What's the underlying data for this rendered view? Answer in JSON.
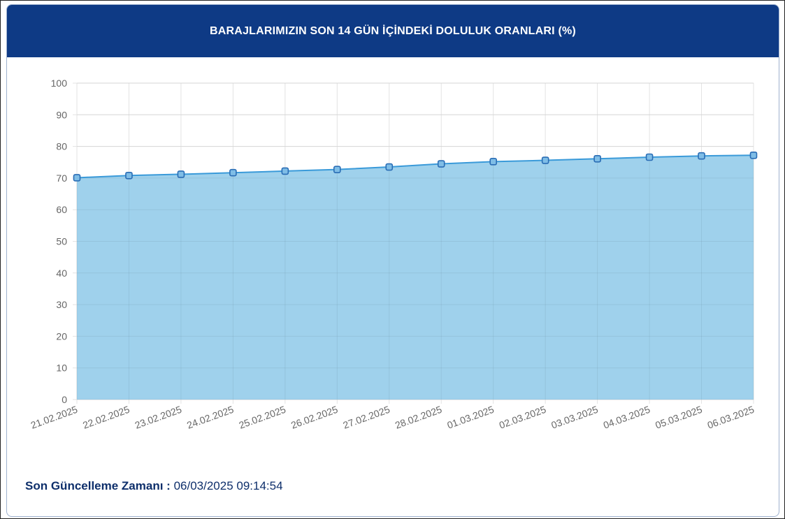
{
  "header": {
    "title": "BARAJLARIMIZIN SON 14 GÜN İÇİNDEKİ DOLULUK ORANLARI (%)"
  },
  "footer": {
    "label": "Son Güncelleme Zamanı :",
    "value": "06/03/2025 09:14:54"
  },
  "colors": {
    "header": "#0e3a85",
    "line": "#3a9ad9",
    "fill": "#9acfeb",
    "marker": "#2a6db5"
  },
  "chart_data": {
    "type": "area",
    "title": "BARAJLARIMIZIN SON 14 GÜN İÇİNDEKİ DOLULUK ORANLARI (%)",
    "categories": [
      "21.02.2025",
      "22.02.2025",
      "23.02.2025",
      "24.02.2025",
      "25.02.2025",
      "26.02.2025",
      "27.02.2025",
      "28.02.2025",
      "01.03.2025",
      "02.03.2025",
      "03.03.2025",
      "04.03.2025",
      "05.03.2025",
      "06.03.2025"
    ],
    "values": [
      70.1,
      70.8,
      71.2,
      71.7,
      72.2,
      72.7,
      73.5,
      74.5,
      75.2,
      75.6,
      76.1,
      76.6,
      77.0,
      77.2
    ],
    "ylim": [
      0,
      100
    ],
    "yticks": [
      "0",
      "10",
      "20",
      "30",
      "40",
      "50",
      "60",
      "70",
      "80",
      "90",
      "100"
    ],
    "grid": true,
    "legend": "none"
  }
}
